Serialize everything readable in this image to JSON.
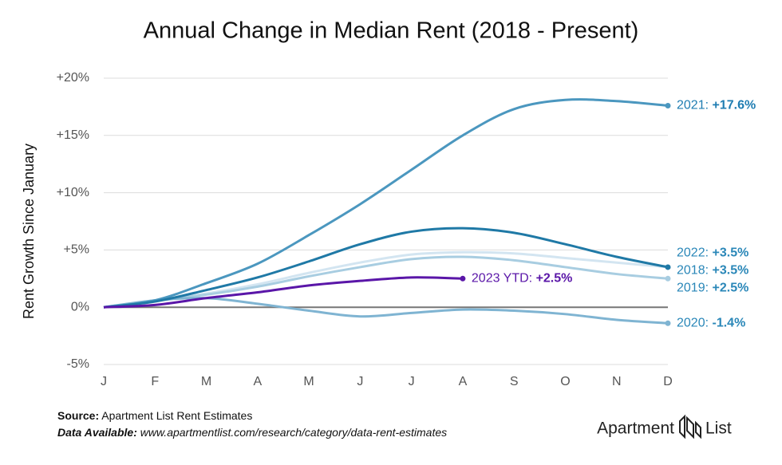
{
  "chart_data": {
    "type": "line",
    "title": "Annual Change in Median Rent (2018 - Present)",
    "y_axis_label": "Rent Growth Since January",
    "categories": [
      "J",
      "F",
      "M",
      "A",
      "M",
      "J",
      "J",
      "A",
      "S",
      "O",
      "N",
      "D"
    ],
    "ylim": [
      -5,
      20
    ],
    "yticks": [
      {
        "value": 20,
        "label": "+20%"
      },
      {
        "value": 15,
        "label": "+15%"
      },
      {
        "value": 10,
        "label": "+10%"
      },
      {
        "value": 5,
        "label": "+5%"
      },
      {
        "value": 0,
        "label": "0%"
      },
      {
        "value": -5,
        "label": "-5%"
      }
    ],
    "grid": true,
    "series": [
      {
        "name": "2022:",
        "color": "#d3e5f1",
        "label_color": "#2a87b8",
        "values": [
          0,
          0.6,
          1.2,
          2.0,
          3.0,
          3.9,
          4.6,
          4.8,
          4.7,
          4.3,
          3.9,
          3.5
        ],
        "value_label": "+3.5%"
      },
      {
        "name": "2019:",
        "color": "#a8cde1",
        "label_color": "#2a87b8",
        "values": [
          0,
          0.6,
          1.1,
          1.8,
          2.7,
          3.5,
          4.2,
          4.4,
          4.1,
          3.5,
          2.9,
          2.5
        ],
        "value_label": "+2.5%"
      },
      {
        "name": "2020:",
        "color": "#7fb4d2",
        "label_color": "#2a87b8",
        "values": [
          0,
          0.6,
          0.8,
          0.3,
          -0.3,
          -0.8,
          -0.5,
          -0.2,
          -0.3,
          -0.6,
          -1.1,
          -1.4
        ],
        "value_label": "-1.4%"
      },
      {
        "name": "2021:",
        "color": "#4b97bf",
        "label_color": "#1f7db2",
        "values": [
          0,
          0.6,
          2.1,
          3.8,
          6.3,
          9.0,
          12.0,
          15.0,
          17.3,
          18.1,
          18.0,
          17.6
        ],
        "value_label": "+17.6%"
      },
      {
        "name": "2018:",
        "color": "#1f79a6",
        "label_color": "#2a87b8",
        "values": [
          0,
          0.5,
          1.5,
          2.6,
          4.0,
          5.5,
          6.6,
          6.9,
          6.5,
          5.5,
          4.4,
          3.5
        ],
        "value_label": "+3.5%"
      },
      {
        "name": "2023 YTD:",
        "color": "#5a16a8",
        "label_color": "#5a16a8",
        "values": [
          0,
          0.2,
          0.8,
          1.3,
          1.9,
          2.3,
          2.6,
          2.5,
          null,
          null,
          null,
          null
        ],
        "value_label": "+2.5%"
      }
    ]
  },
  "footer": {
    "source_label": "Source:",
    "source_text": "Apartment List Rent Estimates",
    "data_label": "Data Available:",
    "data_text": "www.apartmentlist.com/research/category/data-rent-estimates"
  },
  "logo": {
    "left": "Apartment",
    "right": "List"
  }
}
